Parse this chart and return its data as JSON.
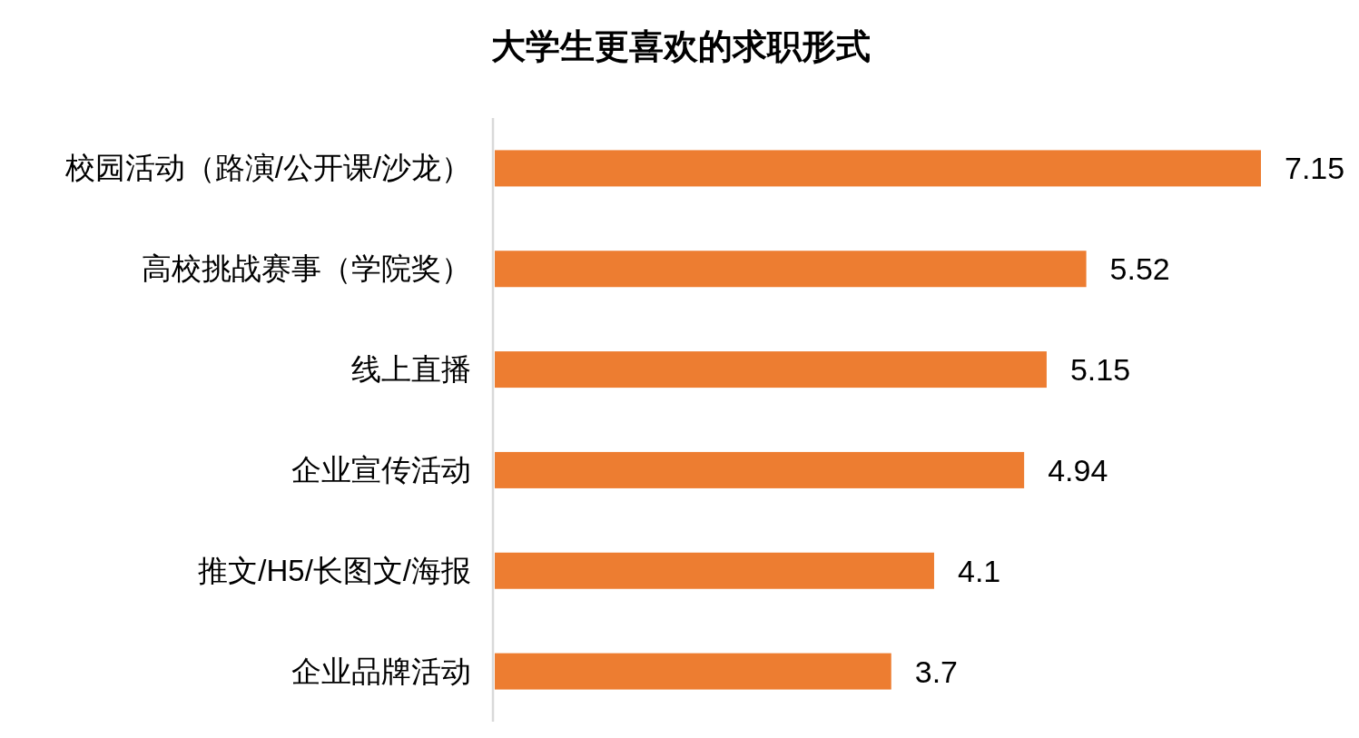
{
  "chart_data": {
    "type": "bar",
    "orientation": "horizontal",
    "title": "大学生更喜欢的求职形式",
    "categories": [
      "校园活动（路演/公开课/沙龙）",
      "高校挑战赛事（学院奖）",
      "线上直播",
      "企业宣传活动",
      "推文/H5/长图文/海报",
      "企业品牌活动"
    ],
    "values": [
      7.15,
      5.52,
      5.15,
      4.94,
      4.1,
      3.7
    ],
    "color": "#ed7d31",
    "data_labels": true
  }
}
